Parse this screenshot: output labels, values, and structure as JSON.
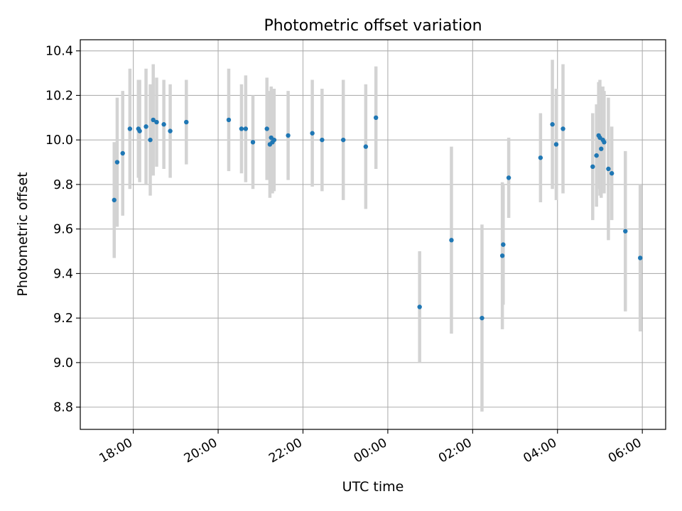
{
  "chart_data": {
    "type": "scatter",
    "title": "Photometric offset variation",
    "xlabel": "UTC time",
    "ylabel": "Photometric offset",
    "x_unit": "hours since 00:00 UTC",
    "xlim": [
      -7.25,
      6.55
    ],
    "ylim": [
      8.7,
      10.45
    ],
    "grid": true,
    "x_ticks": [
      {
        "value": -6,
        "label": "18:00"
      },
      {
        "value": -4,
        "label": "20:00"
      },
      {
        "value": -2,
        "label": "22:00"
      },
      {
        "value": 0,
        "label": "00:00"
      },
      {
        "value": 2,
        "label": "02:00"
      },
      {
        "value": 4,
        "label": "04:00"
      },
      {
        "value": 6,
        "label": "06:00"
      }
    ],
    "y_ticks": [
      {
        "value": 8.8,
        "label": "8.8"
      },
      {
        "value": 9.0,
        "label": "9.0"
      },
      {
        "value": 9.2,
        "label": "9.2"
      },
      {
        "value": 9.4,
        "label": "9.4"
      },
      {
        "value": 9.6,
        "label": "9.6"
      },
      {
        "value": 9.8,
        "label": "9.8"
      },
      {
        "value": 10.0,
        "label": "10.0"
      },
      {
        "value": 10.2,
        "label": "10.2"
      },
      {
        "value": 10.4,
        "label": "10.4"
      }
    ],
    "colors": {
      "point": "#1f77b4",
      "errorbar": "#d3d3d3",
      "grid": "#b0b0b0"
    },
    "points": [
      {
        "x": -6.45,
        "y": 9.73,
        "err": 0.26
      },
      {
        "x": -6.38,
        "y": 9.9,
        "err": 0.29
      },
      {
        "x": -6.25,
        "y": 9.94,
        "err": 0.28
      },
      {
        "x": -6.08,
        "y": 10.05,
        "err": 0.27
      },
      {
        "x": -5.88,
        "y": 10.05,
        "err": 0.22
      },
      {
        "x": -5.85,
        "y": 10.04,
        "err": 0.23
      },
      {
        "x": -5.7,
        "y": 10.06,
        "err": 0.26
      },
      {
        "x": -5.6,
        "y": 10.0,
        "err": 0.25
      },
      {
        "x": -5.53,
        "y": 10.09,
        "err": 0.25
      },
      {
        "x": -5.45,
        "y": 10.08,
        "err": 0.2
      },
      {
        "x": -5.28,
        "y": 10.07,
        "err": 0.2
      },
      {
        "x": -5.13,
        "y": 10.04,
        "err": 0.21
      },
      {
        "x": -4.75,
        "y": 10.08,
        "err": 0.19
      },
      {
        "x": -3.75,
        "y": 10.09,
        "err": 0.23
      },
      {
        "x": -3.45,
        "y": 10.05,
        "err": 0.2
      },
      {
        "x": -3.35,
        "y": 10.05,
        "err": 0.24
      },
      {
        "x": -3.18,
        "y": 9.99,
        "err": 0.21
      },
      {
        "x": -2.85,
        "y": 10.05,
        "err": 0.23
      },
      {
        "x": -2.78,
        "y": 9.98,
        "err": 0.24
      },
      {
        "x": -2.75,
        "y": 10.01,
        "err": 0.23
      },
      {
        "x": -2.72,
        "y": 9.99,
        "err": 0.23
      },
      {
        "x": -2.68,
        "y": 10.0,
        "err": 0.23
      },
      {
        "x": -2.35,
        "y": 10.02,
        "err": 0.2
      },
      {
        "x": -1.78,
        "y": 10.03,
        "err": 0.24
      },
      {
        "x": -1.55,
        "y": 10.0,
        "err": 0.23
      },
      {
        "x": -1.05,
        "y": 10.0,
        "err": 0.27
      },
      {
        "x": -0.52,
        "y": 9.97,
        "err": 0.28
      },
      {
        "x": -0.28,
        "y": 10.1,
        "err": 0.23
      },
      {
        "x": 0.75,
        "y": 9.25,
        "err": 0.25
      },
      {
        "x": 1.5,
        "y": 9.55,
        "err": 0.42
      },
      {
        "x": 2.22,
        "y": 9.2,
        "err": 0.42
      },
      {
        "x": 2.7,
        "y": 9.48,
        "err": 0.33
      },
      {
        "x": 2.72,
        "y": 9.53,
        "err": 0.27
      },
      {
        "x": 2.85,
        "y": 9.83,
        "err": 0.18
      },
      {
        "x": 3.6,
        "y": 9.92,
        "err": 0.2
      },
      {
        "x": 3.88,
        "y": 10.07,
        "err": 0.29
      },
      {
        "x": 3.97,
        "y": 9.98,
        "err": 0.25
      },
      {
        "x": 4.13,
        "y": 10.05,
        "err": 0.29
      },
      {
        "x": 4.83,
        "y": 9.88,
        "err": 0.24
      },
      {
        "x": 4.92,
        "y": 9.93,
        "err": 0.23
      },
      {
        "x": 4.97,
        "y": 10.02,
        "err": 0.24
      },
      {
        "x": 5.0,
        "y": 10.01,
        "err": 0.26
      },
      {
        "x": 5.03,
        "y": 9.96,
        "err": 0.22
      },
      {
        "x": 5.07,
        "y": 10.0,
        "err": 0.24
      },
      {
        "x": 5.1,
        "y": 9.99,
        "err": 0.23
      },
      {
        "x": 5.2,
        "y": 9.87,
        "err": 0.32
      },
      {
        "x": 5.28,
        "y": 9.85,
        "err": 0.21
      },
      {
        "x": 5.6,
        "y": 9.59,
        "err": 0.36
      },
      {
        "x": 5.95,
        "y": 9.47,
        "err": 0.33
      }
    ]
  }
}
